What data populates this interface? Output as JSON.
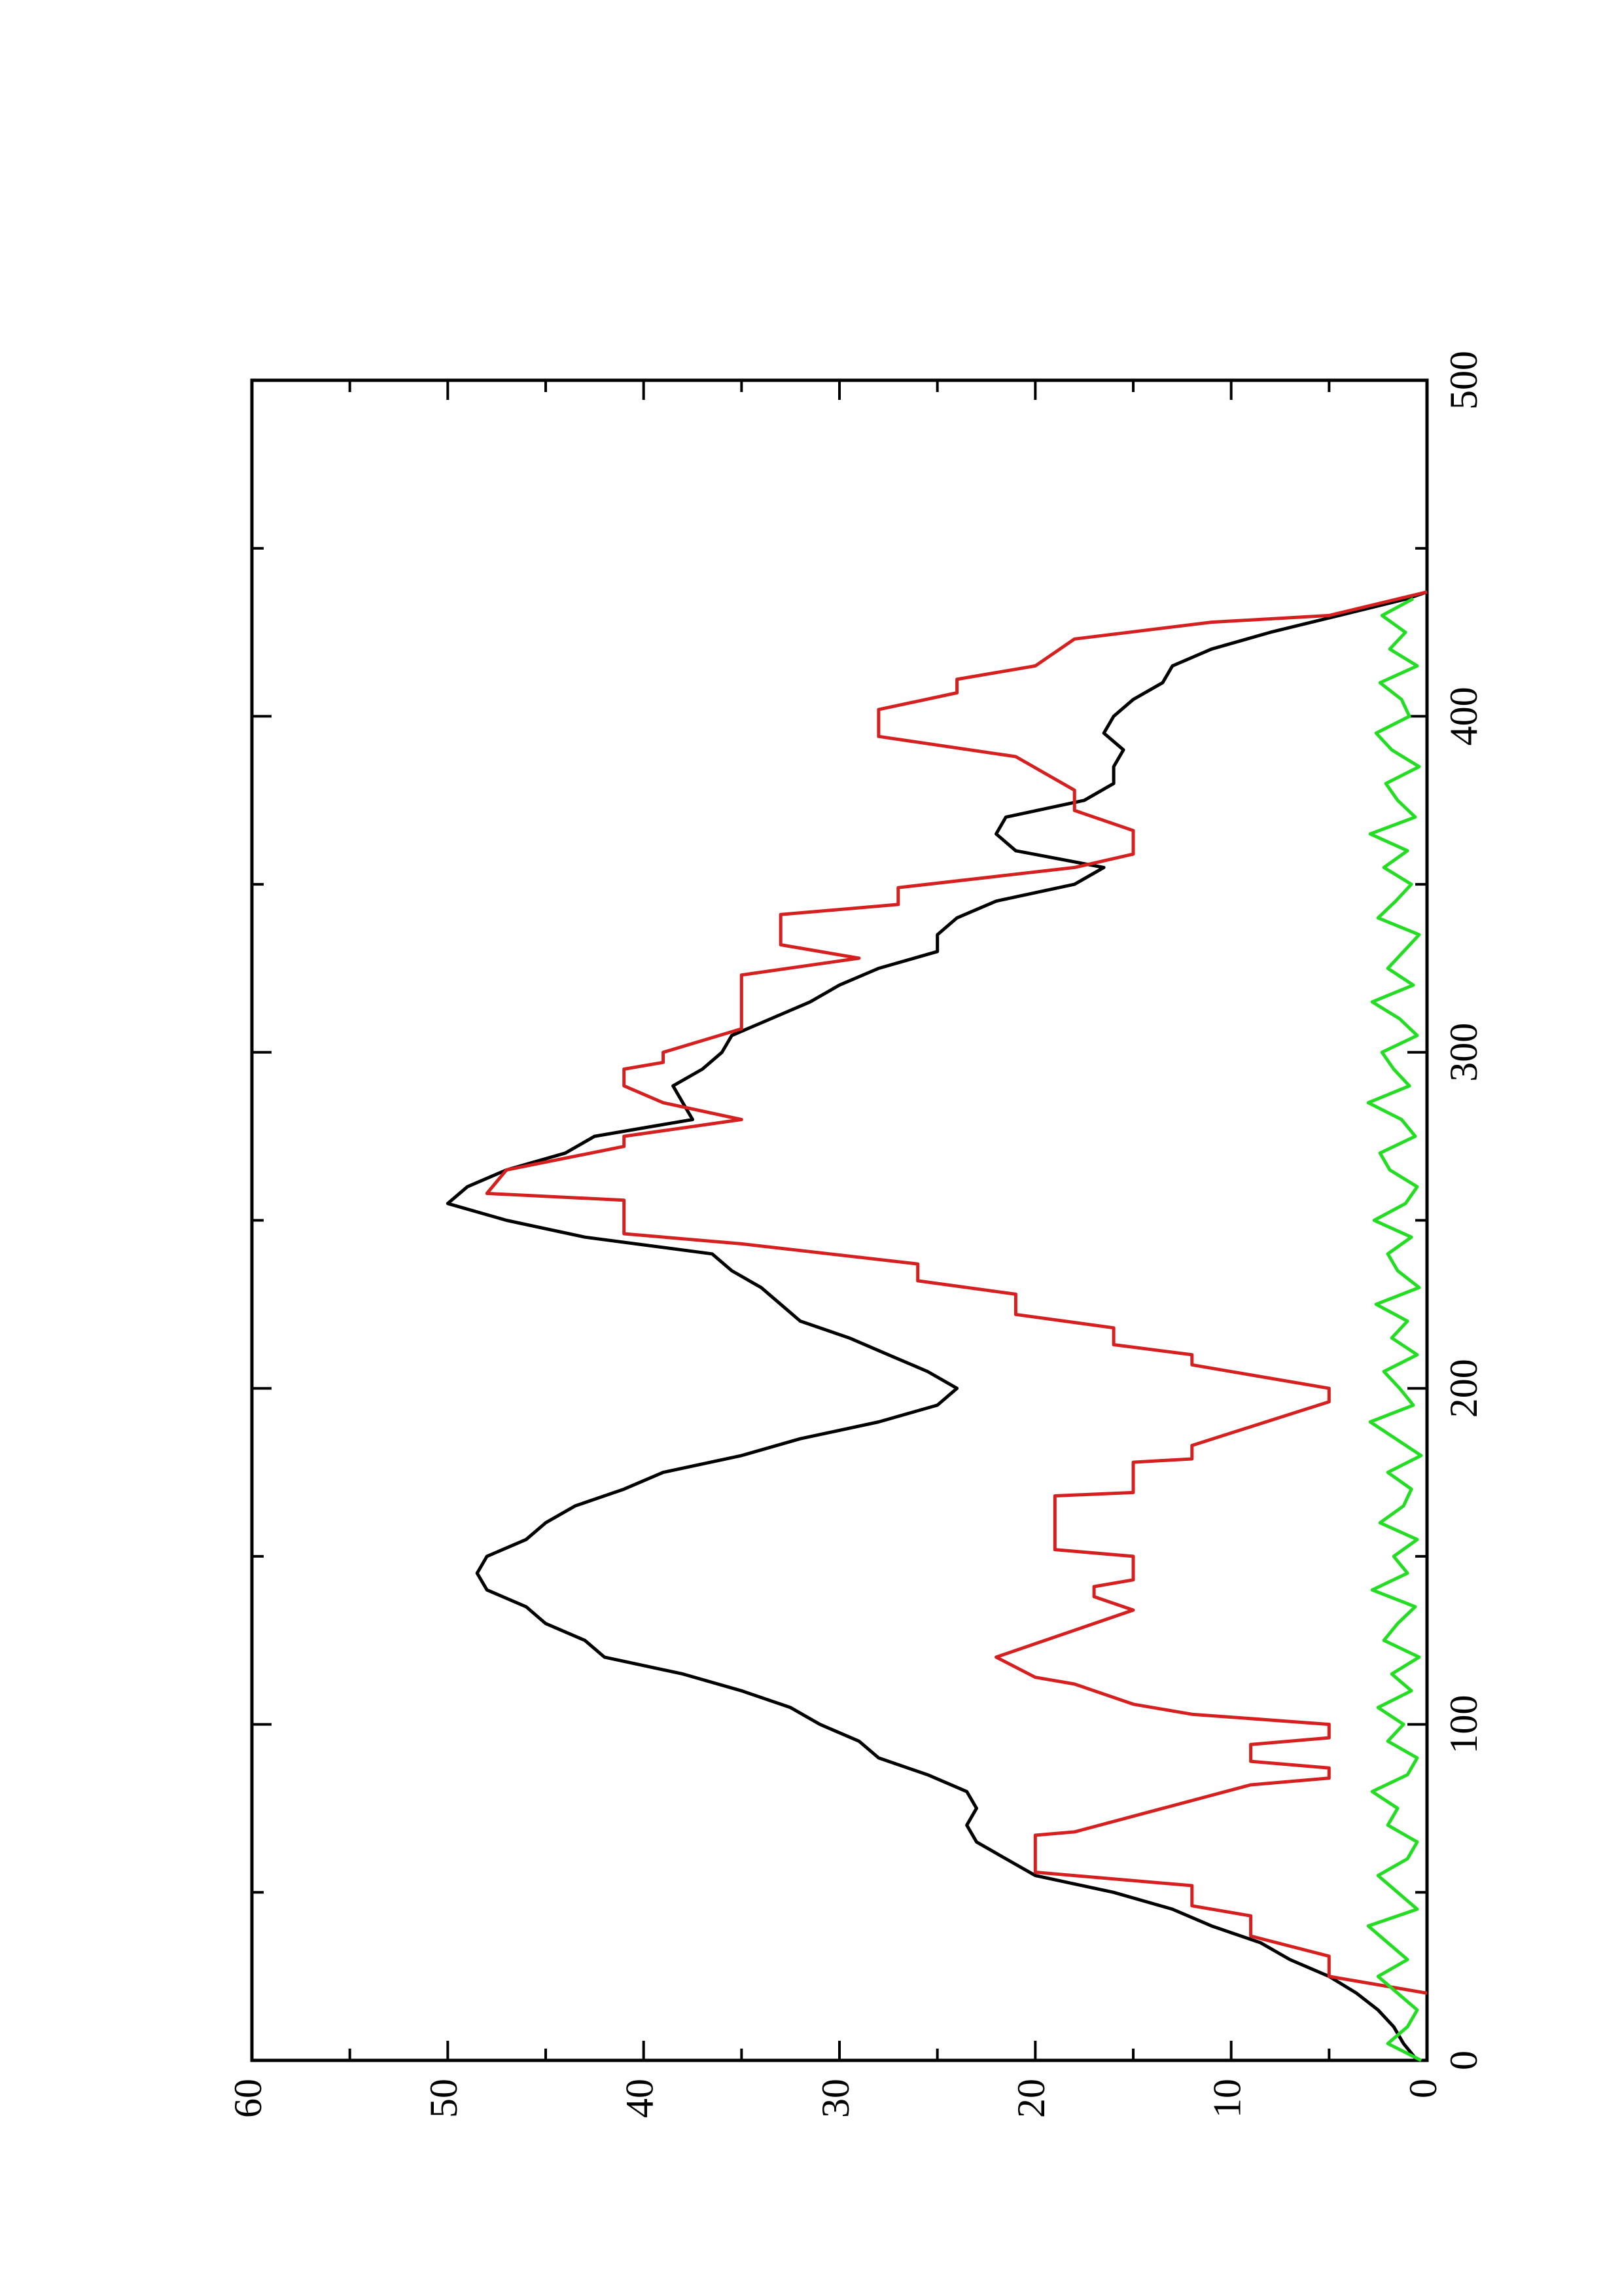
{
  "chart_data": {
    "type": "line",
    "xlim": [
      0,
      500
    ],
    "xticks": [
      0,
      100,
      200,
      300,
      400,
      500
    ],
    "ylim": [
      0,
      60
    ],
    "yticks": [
      0,
      10,
      20,
      30,
      40,
      50,
      60
    ],
    "series": [
      {
        "color": "#000000",
        "x": [
          0,
          5,
          10,
          15,
          20,
          25,
          30,
          35,
          40,
          45,
          50,
          55,
          60,
          65,
          70,
          75,
          80,
          85,
          90,
          95,
          100,
          105,
          110,
          115,
          120,
          125,
          130,
          135,
          140,
          145,
          150,
          155,
          160,
          165,
          170,
          175,
          180,
          185,
          190,
          195,
          200,
          205,
          210,
          215,
          220,
          225,
          230,
          235,
          240,
          245,
          250,
          255,
          260,
          265,
          270,
          275,
          280,
          285,
          290,
          295,
          300,
          305,
          310,
          315,
          320,
          325,
          330,
          335,
          340,
          345,
          350,
          355,
          360,
          365,
          370,
          375,
          380,
          385,
          390,
          395,
          400,
          405,
          410,
          415,
          420,
          425,
          430,
          435,
          437
        ],
        "values": [
          0.5,
          1.2,
          1.7,
          2.5,
          3.6,
          5,
          7,
          8.5,
          11,
          13,
          16,
          20,
          21.5,
          23,
          23.5,
          23,
          23.5,
          25.5,
          28,
          29,
          31,
          32.5,
          35,
          38,
          42,
          43,
          45,
          46,
          48,
          48.5,
          48,
          46,
          45,
          43.5,
          41,
          39,
          35,
          32,
          28,
          25,
          24,
          25.5,
          27.5,
          29.5,
          32,
          33,
          34,
          35.5,
          36.5,
          43,
          47,
          50,
          49,
          47,
          44,
          42.5,
          37.5,
          38,
          38.5,
          37,
          36,
          35.5,
          33.5,
          31.5,
          30,
          28,
          25,
          25,
          24,
          22,
          18,
          16.5,
          21,
          22,
          21.5,
          17.5,
          16,
          16,
          15.5,
          16.5,
          16,
          15,
          13.5,
          13,
          11,
          8,
          4.5,
          1,
          0
        ]
      },
      {
        "color": "#d62020",
        "x": [
          20,
          25,
          31,
          37,
          43,
          46,
          52,
          56,
          67,
          68,
          82,
          84,
          87,
          89,
          94,
          96,
          100,
          103,
          106,
          112,
          114,
          120,
          124,
          134,
          138,
          141,
          143,
          150,
          152,
          168,
          169,
          178,
          179,
          183,
          196,
          200,
          207,
          210,
          213,
          218,
          222,
          228,
          232,
          237,
          243,
          246,
          256,
          258,
          265,
          272,
          275,
          280,
          285,
          290,
          295,
          297,
          300,
          307,
          323,
          328,
          332,
          341,
          344,
          349,
          355,
          359,
          366,
          372,
          378,
          388,
          394,
          402,
          407,
          411,
          415,
          423,
          428,
          430,
          437
        ],
        "values": [
          0,
          5,
          5,
          9,
          9,
          12,
          12,
          20,
          20,
          18,
          9,
          5,
          5,
          9,
          9,
          5,
          5,
          12,
          15,
          18,
          20,
          22,
          20,
          15,
          17,
          17,
          15,
          15,
          19,
          19,
          15,
          15,
          12,
          12,
          5,
          5,
          12,
          12,
          16,
          16,
          21,
          21,
          26,
          26,
          35,
          41,
          41,
          48,
          47,
          41,
          41,
          35,
          39,
          41,
          41,
          39,
          39,
          35,
          35,
          29,
          33,
          33,
          27,
          27,
          18,
          15,
          15,
          18,
          18,
          21,
          28,
          28,
          24,
          24,
          20,
          18,
          11,
          5,
          0
        ]
      },
      {
        "color": "#22dd22",
        "x": [
          0,
          5,
          10,
          15,
          20,
          25,
          30,
          35,
          40,
          45,
          50,
          55,
          60,
          65,
          70,
          75,
          80,
          85,
          90,
          95,
          100,
          105,
          110,
          115,
          120,
          125,
          130,
          135,
          140,
          145,
          150,
          155,
          160,
          165,
          170,
          175,
          180,
          185,
          190,
          195,
          200,
          205,
          210,
          215,
          220,
          225,
          230,
          235,
          240,
          245,
          250,
          255,
          260,
          265,
          270,
          275,
          280,
          285,
          290,
          295,
          300,
          305,
          310,
          315,
          320,
          325,
          330,
          335,
          340,
          345,
          350,
          355,
          360,
          365,
          370,
          375,
          380,
          385,
          390,
          395,
          400,
          405,
          410,
          415,
          420,
          425,
          430,
          435
        ],
        "values": [
          0.3,
          2,
          1,
          0.5,
          1.5,
          2.5,
          1,
          2,
          3,
          0.5,
          1.5,
          2.5,
          1,
          0.5,
          2,
          1.5,
          2.8,
          1,
          0.5,
          2,
          1.2,
          2.5,
          0.8,
          1.8,
          0.4,
          2.2,
          1.5,
          0.6,
          2.8,
          1,
          1.7,
          0.5,
          2.4,
          1.2,
          0.8,
          2,
          0.3,
          1.6,
          2.9,
          0.7,
          1.4,
          2.2,
          0.5,
          1.8,
          1,
          2.6,
          0.4,
          1.5,
          2,
          0.8,
          2.7,
          1.1,
          0.5,
          1.9,
          2.4,
          0.6,
          1.3,
          3,
          0.9,
          1.7,
          2.3,
          0.5,
          1.4,
          2.8,
          0.7,
          2,
          1.2,
          0.4,
          2.5,
          1.6,
          0.8,
          2.2,
          1,
          2.9,
          0.6,
          1.5,
          2.1,
          0.4,
          1.8,
          2.6,
          0.9,
          1.3,
          2.4,
          0.5,
          1.9,
          1.1,
          2.3,
          0.7
        ]
      }
    ]
  }
}
